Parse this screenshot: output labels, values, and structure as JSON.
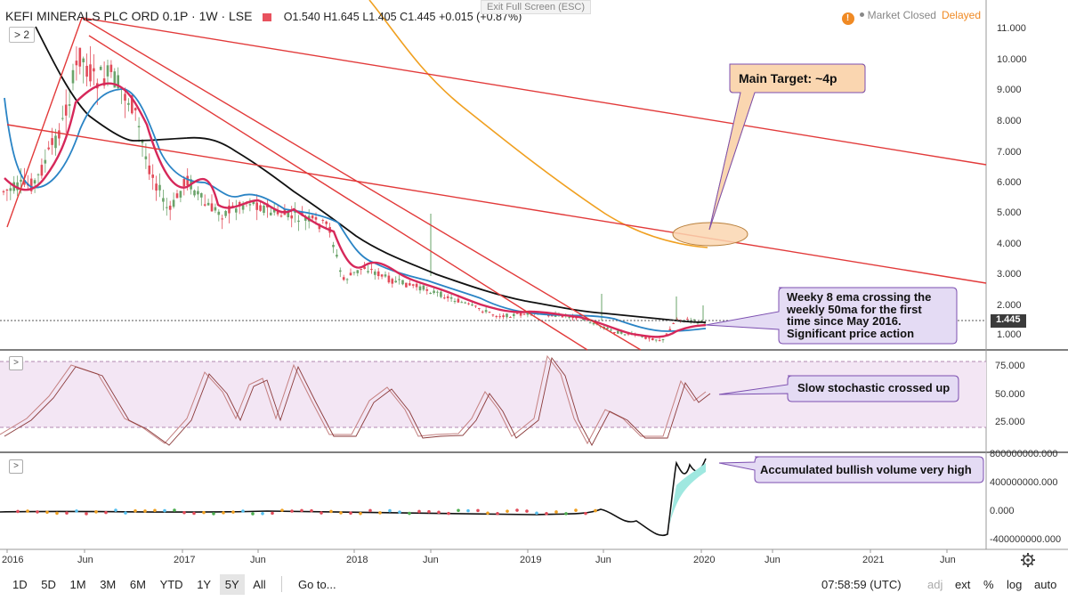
{
  "header": {
    "symbol": "KEFI MINERALS PLC ORD 0.1P · 1W · LSE",
    "open": "O1.540",
    "high": "H1.645",
    "low": "L1.405",
    "close": "C1.445",
    "change": "+0.015 (+0.87%)"
  },
  "exit_full_screen": "Exit Full Screen (ESC)",
  "status": {
    "market": "Market Closed",
    "delayed": "Delayed",
    "warn_icon": "!"
  },
  "collapse_label": "2",
  "price_axis": {
    "ticks": [
      "11.000",
      "10.000",
      "9.000",
      "8.000",
      "7.000",
      "6.000",
      "5.000",
      "4.000",
      "3.000",
      "2.000",
      "1.000"
    ],
    "last_price": "1.445"
  },
  "stoch_axis": {
    "ticks": [
      "75.000",
      "50.000",
      "25.000"
    ]
  },
  "volume_axis": {
    "ticks": [
      "800000000.000",
      "400000000.000",
      "0.000",
      "-400000000.000"
    ]
  },
  "time_axis": {
    "labels": [
      "2016",
      "Jun",
      "2017",
      "Jun",
      "2018",
      "Jun",
      "2019",
      "Jun",
      "2020",
      "Jun",
      "2021",
      "Jun"
    ]
  },
  "annotations": {
    "main_target": "Main Target: ~4p",
    "ema_cross": [
      "Weeky 8 ema crossing the",
      "weekly 50ma for the first",
      "time since May 2016.",
      "Significant price action"
    ],
    "stochastic": "Slow stochastic crossed up",
    "volume": "Accumulated bullish volume very high"
  },
  "toolbar": {
    "timeframes": [
      "1D",
      "5D",
      "1M",
      "3M",
      "6M",
      "YTD",
      "1Y",
      "5Y",
      "All"
    ],
    "selected": "5Y",
    "goto": "Go to...",
    "clock": "07:58:59 (UTC)",
    "adj": "adj",
    "ext": "ext",
    "percent": "%",
    "log": "log",
    "auto": "auto"
  },
  "colors": {
    "up": "#6aa36a",
    "down": "#e24b59",
    "ema8": "#d6285a",
    "ema20": "#2a84c5",
    "ma50": "#111111",
    "ma200": "#f0a020",
    "trend": "#e23a3a",
    "stoch_band": "#f3e6f4",
    "callout_fill": "#e4dbf4",
    "callout_stroke": "#7c4fb0",
    "target_fill": "#fad6b0",
    "target_stroke": "#b9803c"
  }
}
